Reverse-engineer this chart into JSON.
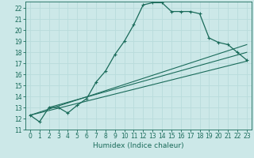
{
  "title": "",
  "xlabel": "Humidex (Indice chaleur)",
  "xlim": [
    -0.5,
    23.5
  ],
  "ylim": [
    11,
    22.6
  ],
  "yticks": [
    11,
    12,
    13,
    14,
    15,
    16,
    17,
    18,
    19,
    20,
    21,
    22
  ],
  "xticks": [
    0,
    1,
    2,
    3,
    4,
    5,
    6,
    7,
    8,
    9,
    10,
    11,
    12,
    13,
    14,
    15,
    16,
    17,
    18,
    19,
    20,
    21,
    22,
    23
  ],
  "bg_color": "#cce8e8",
  "grid_color": "#aed4d4",
  "line_color": "#1a6b5a",
  "main_curve_x": [
    0,
    1,
    2,
    3,
    4,
    5,
    6,
    7,
    8,
    9,
    10,
    11,
    12,
    13,
    14,
    15,
    16,
    17,
    18,
    19,
    20,
    21,
    22,
    23
  ],
  "main_curve_y": [
    12.3,
    11.7,
    13.0,
    13.0,
    12.5,
    13.2,
    13.8,
    15.3,
    16.3,
    17.8,
    19.0,
    20.5,
    22.3,
    22.5,
    22.5,
    21.7,
    21.7,
    21.7,
    21.5,
    19.3,
    18.9,
    18.7,
    18.0,
    17.3
  ],
  "line1_x": [
    0,
    23
  ],
  "line1_y": [
    12.3,
    17.2
  ],
  "line2_x": [
    0,
    23
  ],
  "line2_y": [
    12.3,
    18.7
  ],
  "line3_x": [
    2,
    23
  ],
  "line3_y": [
    13.0,
    18.0
  ],
  "tick_fontsize": 5.5,
  "xlabel_fontsize": 6.5
}
